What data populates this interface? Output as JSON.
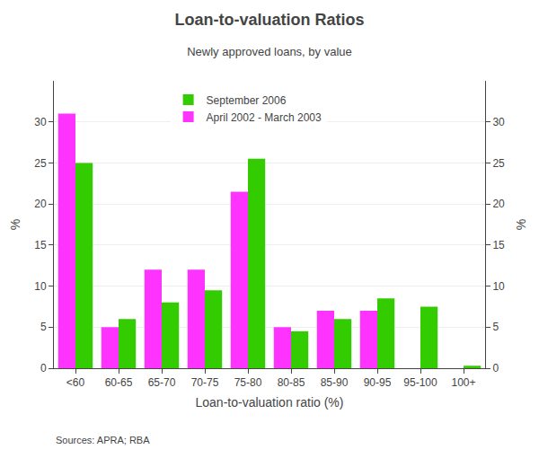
{
  "chart_data": {
    "type": "bar",
    "title": "Loan-to-valuation Ratios",
    "subtitle": "Newly approved loans, by value",
    "xlabel": "Loan-to-valuation ratio (%)",
    "ylabel": "%",
    "y2label": "%",
    "source": "Sources: APRA; RBA",
    "categories": [
      "<60",
      "60-65",
      "65-70",
      "70-75",
      "75-80",
      "80-85",
      "85-90",
      "90-95",
      "95-100",
      "100+"
    ],
    "series": [
      {
        "name": "April 2002 - March 2003",
        "color": "#ff33ff",
        "values": [
          31.0,
          5.0,
          12.0,
          12.0,
          21.5,
          5.0,
          7.0,
          7.0,
          null,
          null
        ]
      },
      {
        "name": "September 2006",
        "color": "#33cc00",
        "values": [
          25.0,
          6.0,
          8.0,
          9.5,
          25.5,
          4.5,
          6.0,
          8.5,
          7.5,
          0.3
        ]
      }
    ],
    "ylim": [
      0,
      35
    ],
    "yticks": [
      0,
      5,
      10,
      15,
      20,
      25,
      30
    ],
    "y2lim": [
      0,
      35
    ],
    "y2ticks": [
      0,
      5,
      10,
      15,
      20,
      25,
      30
    ],
    "grid": true,
    "legend": "upper left"
  }
}
